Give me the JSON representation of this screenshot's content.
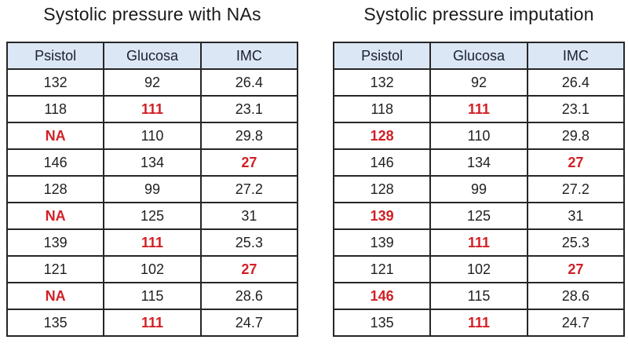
{
  "colors": {
    "header_bg": "#dce7f5",
    "border": "#262626",
    "text": "#1f1f1f",
    "highlight_red": "#d12025",
    "background": "#ffffff"
  },
  "chart_data": [
    {
      "type": "table",
      "title": "Systolic pressure with NAs",
      "columns": [
        "Psistol",
        "Glucosa",
        "IMC"
      ],
      "rows": [
        [
          {
            "text": "132"
          },
          {
            "text": "92"
          },
          {
            "text": "26.4"
          }
        ],
        [
          {
            "text": "118"
          },
          {
            "text": "111",
            "red": true
          },
          {
            "text": "23.1"
          }
        ],
        [
          {
            "text": "NA",
            "red": true
          },
          {
            "text": "110"
          },
          {
            "text": "29.8"
          }
        ],
        [
          {
            "text": "146"
          },
          {
            "text": "134"
          },
          {
            "text": "27",
            "red": true
          }
        ],
        [
          {
            "text": "128"
          },
          {
            "text": "99"
          },
          {
            "text": "27.2"
          }
        ],
        [
          {
            "text": "NA",
            "red": true
          },
          {
            "text": "125"
          },
          {
            "text": "31"
          }
        ],
        [
          {
            "text": "139"
          },
          {
            "text": "111",
            "red": true
          },
          {
            "text": "25.3"
          }
        ],
        [
          {
            "text": "121"
          },
          {
            "text": "102"
          },
          {
            "text": "27",
            "red": true
          }
        ],
        [
          {
            "text": "NA",
            "red": true
          },
          {
            "text": "115"
          },
          {
            "text": "28.6"
          }
        ],
        [
          {
            "text": "135"
          },
          {
            "text": "111",
            "red": true
          },
          {
            "text": "24.7"
          }
        ]
      ]
    },
    {
      "type": "table",
      "title": "Systolic pressure imputation",
      "columns": [
        "Psistol",
        "Glucosa",
        "IMC"
      ],
      "rows": [
        [
          {
            "text": "132"
          },
          {
            "text": "92"
          },
          {
            "text": "26.4"
          }
        ],
        [
          {
            "text": "118"
          },
          {
            "text": "111",
            "red": true
          },
          {
            "text": "23.1"
          }
        ],
        [
          {
            "text": "128",
            "red": true
          },
          {
            "text": "110"
          },
          {
            "text": "29.8"
          }
        ],
        [
          {
            "text": "146"
          },
          {
            "text": "134"
          },
          {
            "text": "27",
            "red": true
          }
        ],
        [
          {
            "text": "128"
          },
          {
            "text": "99"
          },
          {
            "text": "27.2"
          }
        ],
        [
          {
            "text": "139",
            "red": true
          },
          {
            "text": "125"
          },
          {
            "text": "31"
          }
        ],
        [
          {
            "text": "139"
          },
          {
            "text": "111",
            "red": true
          },
          {
            "text": "25.3"
          }
        ],
        [
          {
            "text": "121"
          },
          {
            "text": "102"
          },
          {
            "text": "27",
            "red": true
          }
        ],
        [
          {
            "text": "146",
            "red": true
          },
          {
            "text": "115"
          },
          {
            "text": "28.6"
          }
        ],
        [
          {
            "text": "135"
          },
          {
            "text": "111",
            "red": true
          },
          {
            "text": "24.7"
          }
        ]
      ]
    }
  ]
}
